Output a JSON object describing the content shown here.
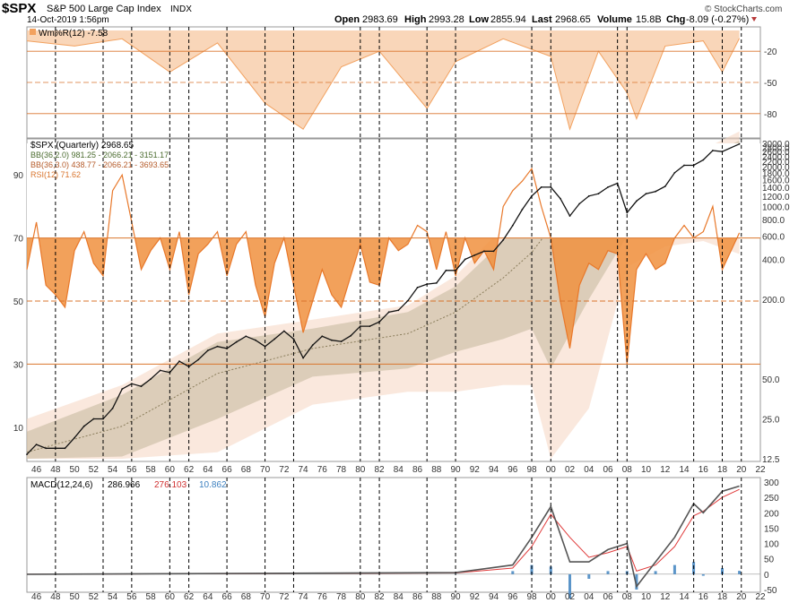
{
  "header": {
    "symbol": "$SPX",
    "name": "S&P 500 Large Cap Index",
    "exchange": "INDX",
    "date": "14-Oct-2019 1:56pm",
    "open_label": "Open",
    "open": "2983.69",
    "high_label": "High",
    "high": "2993.28",
    "low_label": "Low",
    "low": "2855.94",
    "last_label": "Last",
    "last": "2968.65",
    "volume_label": "Volume",
    "volume": "15.8B",
    "chg_label": "Chg",
    "chg": "-8.09 (-0.27%)",
    "watermark": "© StockCharts.com"
  },
  "colors": {
    "price": "#111111",
    "willr": "#f2a15f",
    "willr_fill": "#f6c49b",
    "bb2": "#b9ac8e",
    "bb3": "#f7d9c6",
    "rsi": "#e8782a",
    "rsi_fill": "#f0903e",
    "macd": "#555555",
    "signal": "#e03a3a",
    "hist": "#5b95c9",
    "hline": "#d9742c",
    "vline": "#000000",
    "grid": "#cccccc"
  },
  "legends": {
    "willr": "Wm%R(12) -7.58",
    "price": "$SPX (Quarterly) 2968.65",
    "bb2": "BB(36,2.0) 981.25 - 2066.21 - 3151.17",
    "bb3": "BB(36,3.0) 438.77 - 2066.21 - 3693.65",
    "rsi": "RSI(12) 71.62",
    "macd_name": "MACD(12,24,6)",
    "macd_v": "286.966",
    "signal_v": "276.103",
    "hist_v": "10.862"
  },
  "x_axis_labels": [
    "46",
    "48",
    "50",
    "52",
    "54",
    "56",
    "58",
    "60",
    "62",
    "64",
    "66",
    "68",
    "70",
    "72",
    "74",
    "76",
    "78",
    "80",
    "82",
    "84",
    "86",
    "88",
    "90",
    "92",
    "94",
    "96",
    "98",
    "00",
    "02",
    "04",
    "06",
    "08",
    "10",
    "12",
    "14",
    "16",
    "18",
    "20",
    "22"
  ],
  "vertical_markers": [
    "1948",
    "1953",
    "1956",
    "1960",
    "1962",
    "1966",
    "1970",
    "1973",
    "1980",
    "1982",
    "1987",
    "1990",
    "1998",
    "2000",
    "2007",
    "2008",
    "2015",
    "2018",
    "2020"
  ],
  "willr_axis": [
    "-20",
    "-50",
    "-80"
  ],
  "rsi_axis": [
    "90",
    "70",
    "50",
    "30",
    "10"
  ],
  "price_axis": [
    "3000.0",
    "2800.0",
    "2600.0",
    "2400.0",
    "2200.0",
    "2000.0",
    "1800.0",
    "1600.0",
    "1400.0",
    "1200.0",
    "1000.0",
    "800.0",
    "600.0",
    "400.0",
    "200.0",
    "50.0",
    "25.0",
    "12.5"
  ],
  "macd_axis": [
    "300",
    "250",
    "200",
    "150",
    "100",
    "50",
    "0",
    "-50"
  ],
  "chart_data": {
    "type": "line",
    "title": "$SPX S&P 500 Large Cap Index",
    "panels": [
      "Wm%R(12)",
      "Price (Quarterly, log) with BB(36,2.0), BB(36,3.0) and RSI(12)",
      "MACD(12,24,6)"
    ],
    "x_range": [
      1945,
      2022
    ],
    "price_scale": "log",
    "price_range": [
      12.5,
      3000
    ],
    "rsi_range": [
      0,
      100
    ],
    "willr_range": [
      -100,
      0
    ],
    "macd_range": [
      -50,
      300
    ],
    "spx_price": {
      "x": [
        1945,
        1946,
        1947,
        1948,
        1949,
        1950,
        1951,
        1952,
        1953,
        1954,
        1955,
        1956,
        1957,
        1958,
        1959,
        1960,
        1961,
        1962,
        1963,
        1964,
        1965,
        1966,
        1967,
        1968,
        1969,
        1970,
        1971,
        1972,
        1973,
        1974,
        1975,
        1976,
        1977,
        1978,
        1979,
        1980,
        1981,
        1982,
        1983,
        1984,
        1985,
        1986,
        1987,
        1988,
        1989,
        1990,
        1991,
        1992,
        1993,
        1994,
        1995,
        1996,
        1997,
        1998,
        1999,
        2000,
        2001,
        2002,
        2003,
        2004,
        2005,
        2006,
        2007,
        2008,
        2009,
        2010,
        2011,
        2012,
        2013,
        2014,
        2015,
        2016,
        2017,
        2018,
        2019.8
      ],
      "y": [
        13.5,
        16,
        15,
        15,
        15,
        18,
        22,
        25,
        25,
        30,
        42,
        46,
        44,
        50,
        58,
        56,
        68,
        62,
        70,
        82,
        88,
        85,
        95,
        105,
        98,
        88,
        100,
        115,
        100,
        72,
        90,
        105,
        98,
        96,
        106,
        125,
        125,
        135,
        160,
        165,
        195,
        245,
        260,
        265,
        330,
        330,
        400,
        430,
        460,
        460,
        560,
        720,
        950,
        1200,
        1400,
        1400,
        1150,
        850,
        1050,
        1200,
        1250,
        1400,
        1500,
        900,
        1100,
        1250,
        1300,
        1420,
        1800,
        2050,
        2050,
        2250,
        2650,
        2600,
        2968.65
      ]
    },
    "bb_upper_3": {
      "x": [
        1945,
        1955,
        1965,
        1975,
        1985,
        1990,
        1995,
        1998,
        2000,
        2004,
        2008,
        2012,
        2016,
        2019.8
      ],
      "y": [
        25,
        45,
        110,
        140,
        180,
        300,
        700,
        1350,
        2200,
        1900,
        2000,
        2000,
        2700,
        3693.65
      ]
    },
    "bb_upper_2": {
      "x": [
        1945,
        1955,
        1965,
        1975,
        1985,
        1990,
        1995,
        1998,
        2000,
        2004,
        2008,
        2012,
        2016,
        2019.8
      ],
      "y": [
        20,
        38,
        95,
        120,
        160,
        250,
        550,
        1050,
        1750,
        1600,
        1650,
        1700,
        2300,
        3151.17
      ]
    },
    "bb_middle": {
      "x": [
        1945,
        1955,
        1965,
        1975,
        1985,
        1990,
        1995,
        1998,
        2000,
        2004,
        2008,
        2012,
        2016,
        2019.8
      ],
      "y": [
        14,
        22,
        55,
        85,
        110,
        160,
        290,
        450,
        700,
        950,
        1150,
        1300,
        1600,
        2066.21
      ]
    },
    "bb_lower_2": {
      "x": [
        1945,
        1955,
        1965,
        1975,
        1985,
        1990,
        1995,
        1998,
        2000,
        2004,
        2008,
        2012,
        2016,
        2019.8
      ],
      "y": [
        12.5,
        13,
        25,
        52,
        60,
        80,
        100,
        120,
        60,
        200,
        600,
        800,
        900,
        981.25
      ]
    },
    "bb_lower_3": {
      "x": [
        1945,
        1955,
        1965,
        1975,
        1985,
        1990,
        1995,
        1998,
        2000,
        2004,
        2008,
        2012,
        2016,
        2019.8
      ],
      "y": [
        12.5,
        12.5,
        14,
        32,
        40,
        40,
        45,
        45,
        12.5,
        30,
        350,
        500,
        550,
        438.77
      ]
    },
    "rsi": {
      "x": [
        1945,
        1946,
        1947,
        1948,
        1949,
        1950,
        1951,
        1952,
        1953,
        1954,
        1955,
        1956,
        1957,
        1958,
        1959,
        1960,
        1961,
        1962,
        1963,
        1964,
        1965,
        1966,
        1967,
        1968,
        1969,
        1970,
        1971,
        1972,
        1973,
        1974,
        1975,
        1976,
        1977,
        1978,
        1979,
        1980,
        1981,
        1982,
        1983,
        1984,
        1985,
        1986,
        1987,
        1988,
        1989,
        1990,
        1991,
        1992,
        1993,
        1994,
        1995,
        1996,
        1997,
        1998,
        1999,
        2000,
        2001,
        2002,
        2003,
        2004,
        2005,
        2006,
        2007,
        2008,
        2009,
        2010,
        2011,
        2012,
        2013,
        2014,
        2015,
        2016,
        2017,
        2018,
        2019.8
      ],
      "y": [
        60,
        75,
        55,
        52,
        48,
        66,
        72,
        62,
        58,
        85,
        90,
        75,
        60,
        66,
        70,
        60,
        72,
        52,
        65,
        68,
        72,
        58,
        68,
        72,
        55,
        45,
        62,
        70,
        55,
        40,
        50,
        60,
        52,
        48,
        58,
        68,
        56,
        55,
        70,
        66,
        68,
        74,
        72,
        60,
        72,
        58,
        70,
        62,
        66,
        60,
        80,
        85,
        88,
        92,
        80,
        70,
        50,
        35,
        55,
        62,
        60,
        66,
        65,
        30,
        60,
        65,
        60,
        62,
        70,
        74,
        70,
        72,
        80,
        60,
        71.62
      ]
    },
    "willr": {
      "x": [
        1945,
        1950,
        1955,
        1960,
        1965,
        1970,
        1974,
        1978,
        1982,
        1987,
        1990,
        1995,
        2000,
        2002,
        2005,
        2008,
        2009,
        2012,
        2016,
        2018,
        2019.8
      ],
      "y": [
        -10,
        -15,
        -8,
        -40,
        -12,
        -70,
        -95,
        -35,
        -20,
        -75,
        -30,
        -8,
        -25,
        -95,
        -20,
        -60,
        -85,
        -15,
        -10,
        -40,
        -7.58
      ]
    },
    "macd": {
      "x": [
        1945,
        1990,
        1996,
        1998,
        2000,
        2002,
        2004,
        2006,
        2008,
        2009,
        2011,
        2013,
        2015,
        2016,
        2018,
        2019.8
      ],
      "y": [
        0,
        5,
        30,
        120,
        220,
        40,
        40,
        80,
        100,
        -40,
        40,
        120,
        230,
        200,
        270,
        286.966
      ]
    },
    "signal": {
      "x": [
        1945,
        1990,
        1996,
        1998,
        2000,
        2002,
        2004,
        2006,
        2008,
        2009,
        2011,
        2013,
        2015,
        2016,
        2018,
        2019.8
      ],
      "y": [
        0,
        4,
        20,
        90,
        195,
        120,
        55,
        70,
        90,
        10,
        30,
        90,
        190,
        205,
        250,
        276.103
      ]
    },
    "histogram": {
      "x": [
        1945,
        1990,
        1996,
        1998,
        2000,
        2002,
        2004,
        2006,
        2008,
        2009,
        2011,
        2013,
        2015,
        2016,
        2018,
        2019.8
      ],
      "y": [
        0,
        1,
        10,
        30,
        25,
        -80,
        -15,
        10,
        10,
        -50,
        10,
        30,
        40,
        -5,
        20,
        10.862
      ]
    }
  }
}
